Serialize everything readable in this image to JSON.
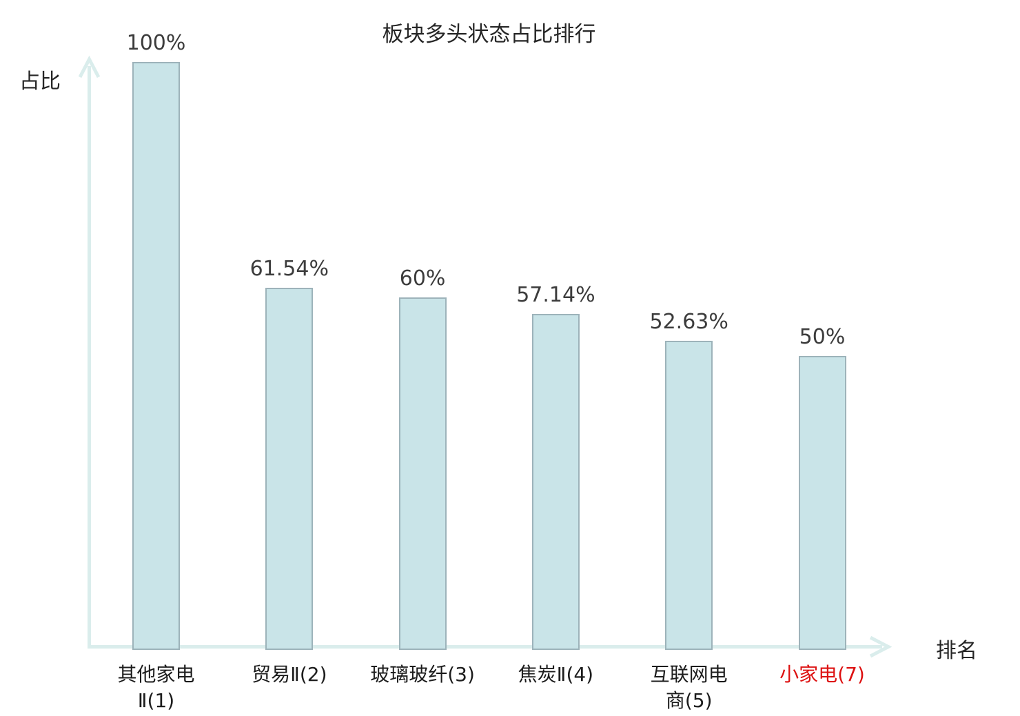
{
  "chart_data": {
    "type": "bar",
    "title": "板块多头状态占比排行",
    "xlabel": "排名",
    "ylabel": "占比",
    "ylim": [
      0,
      100
    ],
    "unit": "%",
    "grid": false,
    "legend": null,
    "categories": [
      "其他家电\nⅡ(1)",
      "贸易Ⅱ(2)",
      "玻璃玻纤(3)",
      "焦炭Ⅱ(4)",
      "互联网电\n商(5)",
      "小家电(7)"
    ],
    "values": [
      100,
      61.54,
      60,
      57.14,
      52.63,
      50
    ],
    "value_labels": [
      "100%",
      "61.54%",
      "60%",
      "57.14%",
      "52.63%",
      "50%"
    ],
    "highlight_index": 5,
    "colors": {
      "bar_fill": "#c9e4e8",
      "bar_border": "#9db3ba",
      "axis": "#daedec",
      "title_text": "#262626",
      "value_label_text": "#3c3c3c",
      "category_label_text": "#1c1c1c",
      "highlight_label_text": "#dd1111"
    }
  }
}
